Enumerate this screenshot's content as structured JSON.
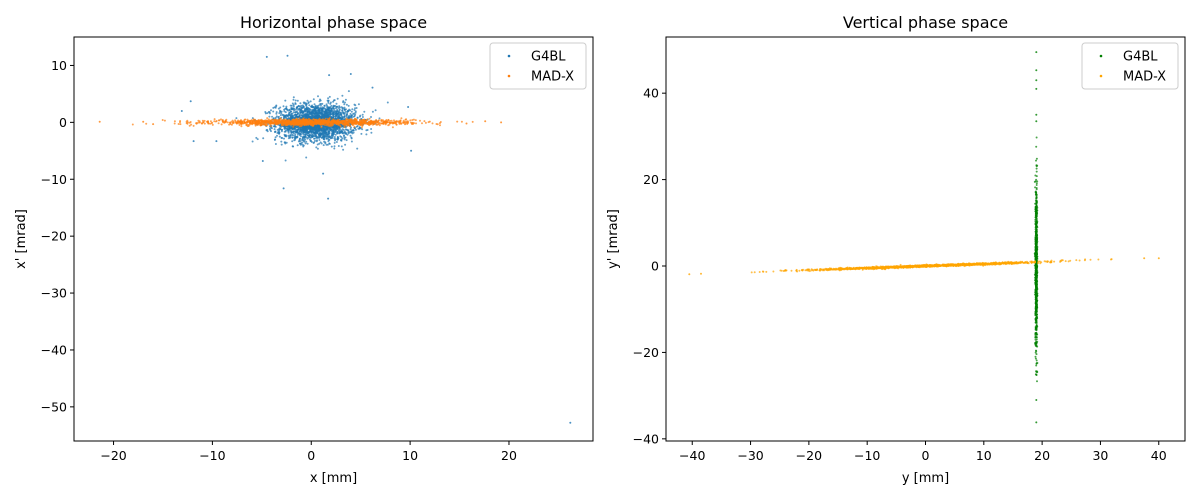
{
  "chart_data": [
    {
      "type": "scatter",
      "title": "Horizontal phase space",
      "xlabel": "x [mm]",
      "ylabel": "x' [mrad]",
      "xlim": [
        -24,
        28.5
      ],
      "ylim": [
        -56,
        15
      ],
      "xticks": [
        -20,
        -10,
        0,
        10,
        20
      ],
      "yticks": [
        -50,
        -40,
        -30,
        -20,
        -10,
        0,
        10
      ],
      "grid": false,
      "legend_position": "top-right",
      "series": [
        {
          "name": "G4BL",
          "color": "#1f77b4",
          "distribution": {
            "shape": "gaussian-core",
            "center": [
              0.5,
              0
            ],
            "sigma": [
              2.0,
              1.6
            ],
            "count": 2600
          },
          "outliers": [
            [
              -4.5,
              11.5
            ],
            [
              -2.4,
              11.7
            ],
            [
              1.8,
              8.3
            ],
            [
              4.0,
              8.5
            ],
            [
              -12.2,
              3.7
            ],
            [
              -13.1,
              2.0
            ],
            [
              -11.9,
              -3.3
            ],
            [
              -9.6,
              -3.3
            ],
            [
              -4.9,
              -6.8
            ],
            [
              -2.8,
              -11.6
            ],
            [
              1.7,
              -13.4
            ],
            [
              1.2,
              -9.0
            ],
            [
              10.1,
              -5.0
            ],
            [
              9.8,
              2.7
            ],
            [
              6.2,
              6.1
            ],
            [
              26.2,
              -52.8
            ]
          ]
        },
        {
          "name": "MAD-X",
          "color": "#ff7f0e",
          "distribution": {
            "shape": "thin-band",
            "center": [
              0,
              0
            ],
            "sigma": [
              5.0,
              0.25
            ],
            "slope": 0.0,
            "count": 1400
          },
          "outliers": [
            [
              -21.4,
              0.1
            ],
            [
              -17.0,
              0.1
            ],
            [
              -16.0,
              -0.3
            ],
            [
              15.7,
              -0.2
            ],
            [
              17.6,
              0.2
            ],
            [
              19.2,
              0.0
            ]
          ]
        }
      ]
    },
    {
      "type": "scatter",
      "title": "Vertical phase space",
      "xlabel": "y [mm]",
      "ylabel": "y' [mrad]",
      "xlim": [
        -44.5,
        44.5
      ],
      "ylim": [
        -40.5,
        53
      ],
      "xticks": [
        -40,
        -30,
        -20,
        -10,
        0,
        10,
        20,
        30,
        40
      ],
      "yticks": [
        -40,
        -20,
        0,
        20,
        40
      ],
      "grid": false,
      "legend_position": "top-right",
      "series": [
        {
          "name": "G4BL",
          "color": "#008000",
          "distribution": {
            "shape": "vertical-line",
            "center": [
              19,
              0
            ],
            "sigma": [
              0.08,
              9.0
            ],
            "count": 900
          },
          "outliers": [
            [
              19,
              49.5
            ],
            [
              19,
              45.3
            ],
            [
              19,
              43.0
            ],
            [
              19,
              41.0
            ],
            [
              19,
              35.0
            ],
            [
              19,
              33.5
            ],
            [
              19,
              -31.0
            ],
            [
              19,
              -36.2
            ]
          ]
        },
        {
          "name": "MAD-X",
          "color": "#ffa500",
          "distribution": {
            "shape": "tilted-line",
            "center": [
              0,
              0
            ],
            "sigma": [
              10.0,
              0.12
            ],
            "slope": 0.048,
            "count": 1400
          },
          "outliers": [
            [
              -40.5,
              -1.9
            ],
            [
              -38.5,
              -1.8
            ],
            [
              37.5,
              1.8
            ],
            [
              40.0,
              1.8
            ]
          ]
        }
      ]
    }
  ]
}
